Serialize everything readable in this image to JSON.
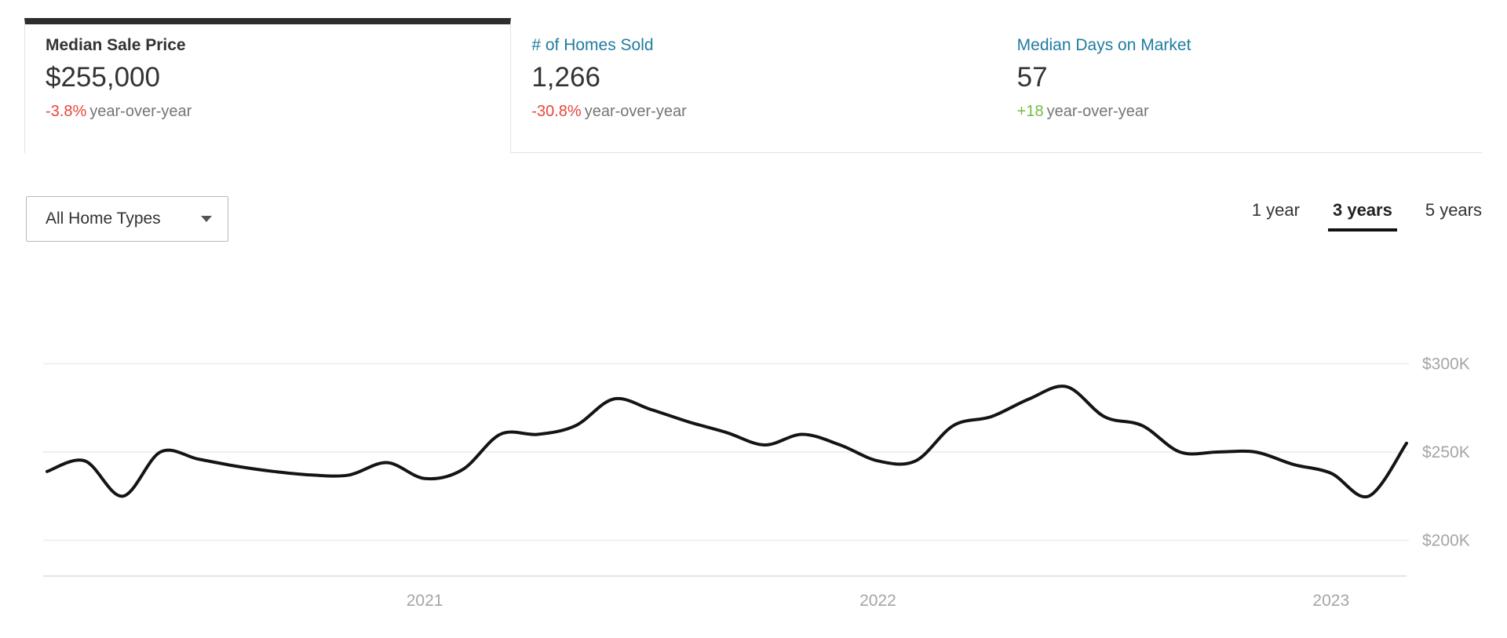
{
  "colors": {
    "accent_dark": "#2d2d2d",
    "teal": "#1e7da0",
    "negative": "#e8453c",
    "positive": "#75bd42",
    "text": "#333333",
    "muted": "#757575",
    "axis": "#a5a5a5",
    "grid": "#ececec",
    "axis_line": "#e4e4e4",
    "border": "#e3e3e3",
    "line": "#141414"
  },
  "tabs": [
    {
      "label": "Median Sale Price",
      "value": "$255,000",
      "delta": "-3.8%",
      "delta_suffix": "year-over-year",
      "delta_direction": "down",
      "active": true
    },
    {
      "label": "# of Homes Sold",
      "value": "1,266",
      "delta": "-30.8%",
      "delta_suffix": "year-over-year",
      "delta_direction": "down",
      "active": false
    },
    {
      "label": "Median Days on Market",
      "value": "57",
      "delta": "+18",
      "delta_suffix": "year-over-year",
      "delta_direction": "up",
      "active": false
    }
  ],
  "controls": {
    "home_type_dropdown": {
      "value": "All Home Types"
    },
    "ranges": [
      {
        "label": "1 year",
        "active": false
      },
      {
        "label": "3 years",
        "active": true
      },
      {
        "label": "5 years",
        "active": false
      }
    ]
  },
  "chart_data": {
    "type": "line",
    "title": "Median Sale Price",
    "series_name": "Median Sale Price ($)",
    "x_unit": "month",
    "x": [
      "2020-03",
      "2020-04",
      "2020-05",
      "2020-06",
      "2020-07",
      "2020-08",
      "2020-09",
      "2020-10",
      "2020-11",
      "2020-12",
      "2021-01",
      "2021-02",
      "2021-03",
      "2021-04",
      "2021-05",
      "2021-06",
      "2021-07",
      "2021-08",
      "2021-09",
      "2021-10",
      "2021-11",
      "2021-12",
      "2022-01",
      "2022-02",
      "2022-03",
      "2022-04",
      "2022-05",
      "2022-06",
      "2022-07",
      "2022-08",
      "2022-09",
      "2022-10",
      "2022-11",
      "2022-12",
      "2023-01",
      "2023-02",
      "2023-03"
    ],
    "values": [
      239000,
      245000,
      225000,
      250000,
      246000,
      242000,
      239000,
      237000,
      237000,
      244000,
      235000,
      240000,
      260000,
      260000,
      265000,
      280000,
      274000,
      267000,
      261000,
      254000,
      260000,
      254000,
      245000,
      245000,
      265000,
      270000,
      280000,
      287000,
      270000,
      265000,
      250000,
      250000,
      250000,
      243000,
      238000,
      225000,
      255000
    ],
    "ylim": [
      200000,
      300000
    ],
    "yticks": [
      {
        "label": "$300K",
        "value": 300000
      },
      {
        "label": "$250K",
        "value": 250000
      },
      {
        "label": "$200K",
        "value": 200000
      }
    ],
    "xticks": [
      {
        "label": "2021",
        "index": 10
      },
      {
        "label": "2022",
        "index": 22
      },
      {
        "label": "2023",
        "index": 34
      }
    ],
    "grid": "horizontal",
    "legend": "none",
    "yaxis_side": "right"
  }
}
